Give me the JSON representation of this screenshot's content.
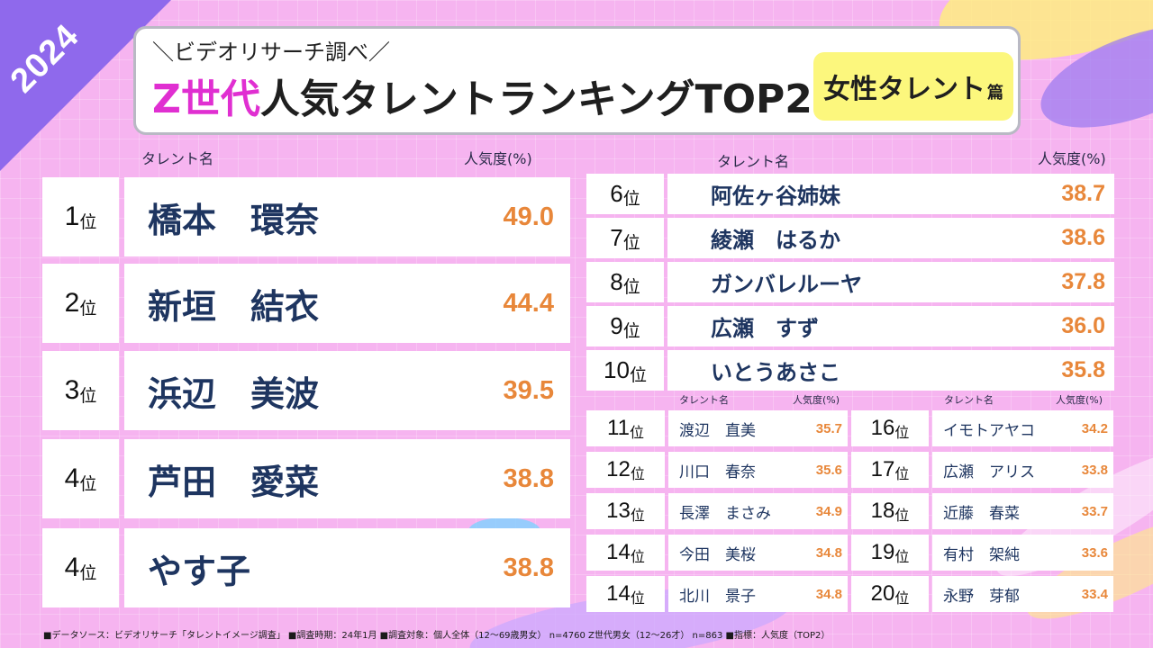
{
  "year": "2024",
  "title": {
    "subtitle": "＼ビデオリサーチ調べ／",
    "highlight": "Z世代",
    "rest": "人気タレントランキングTOP20",
    "category": "女性タレント",
    "category_suffix": "篇"
  },
  "headers": {
    "name": "タレント名",
    "score": "人気度(%)"
  },
  "rank_suffix": "位",
  "ranking": [
    {
      "rank": "1",
      "name": "橋本　環奈",
      "score": "49.0"
    },
    {
      "rank": "2",
      "name": "新垣　結衣",
      "score": "44.4"
    },
    {
      "rank": "3",
      "name": "浜辺　美波",
      "score": "39.5"
    },
    {
      "rank": "4",
      "name": "芦田　愛菜",
      "score": "38.8"
    },
    {
      "rank": "4",
      "name": "やす子",
      "score": "38.8"
    },
    {
      "rank": "6",
      "name": "阿佐ヶ谷姉妹",
      "score": "38.7"
    },
    {
      "rank": "7",
      "name": "綾瀬　はるか",
      "score": "38.6"
    },
    {
      "rank": "8",
      "name": "ガンバレルーヤ",
      "score": "37.8"
    },
    {
      "rank": "9",
      "name": "広瀬　すず",
      "score": "36.0"
    },
    {
      "rank": "10",
      "name": "いとうあさこ",
      "score": "35.8"
    },
    {
      "rank": "11",
      "name": "渡辺　直美",
      "score": "35.7"
    },
    {
      "rank": "12",
      "name": "川口　春奈",
      "score": "35.6"
    },
    {
      "rank": "13",
      "name": "長澤　まさみ",
      "score": "34.9"
    },
    {
      "rank": "14",
      "name": "今田　美桜",
      "score": "34.8"
    },
    {
      "rank": "14",
      "name": "北川　景子",
      "score": "34.8"
    },
    {
      "rank": "16",
      "name": "イモトアヤコ",
      "score": "34.2"
    },
    {
      "rank": "17",
      "name": "広瀬　アリス",
      "score": "33.8"
    },
    {
      "rank": "18",
      "name": "近藤　春菜",
      "score": "33.7"
    },
    {
      "rank": "19",
      "name": "有村　架純",
      "score": "33.6"
    },
    {
      "rank": "20",
      "name": "永野　芽郁",
      "score": "33.4"
    }
  ],
  "footer": "■データソース：ビデオリサーチ「タレントイメージ調査」 ■調査時期：24年1月 ■調査対象：個人全体（12～69歳男女） n=4760 Z世代男女（12～26才） n=863 ■指標：人気度（TOP2）"
}
